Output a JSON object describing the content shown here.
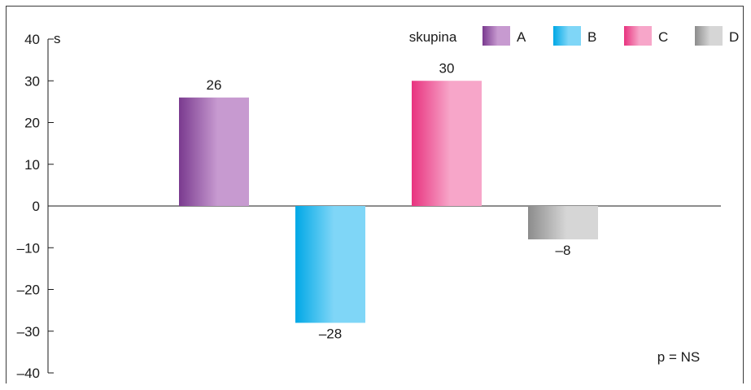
{
  "chart_data": {
    "type": "bar",
    "categories": [
      "A",
      "B",
      "C",
      "D"
    ],
    "values": [
      26,
      -28,
      30,
      -8
    ],
    "data_labels": [
      "26",
      "–28",
      "30",
      "–8"
    ],
    "ylabel": "s",
    "ylim": [
      -40,
      40
    ],
    "yticks": [
      40,
      30,
      20,
      10,
      0,
      -10,
      -20,
      -30,
      -40
    ],
    "ytick_labels": [
      "40",
      "30",
      "20",
      "10",
      "0",
      "–10",
      "–20",
      "–30",
      "–40"
    ],
    "grid": false,
    "legend": {
      "title": "skupina",
      "placement": "top-right",
      "entries": [
        "A",
        "B",
        "C",
        "D"
      ]
    },
    "annotation": "p = NS",
    "colors": {
      "A": [
        "#7a3a8f",
        "#c79ad0"
      ],
      "B": [
        "#00a8e6",
        "#7fd6f7"
      ],
      "C": [
        "#e8337f",
        "#f7a6c9"
      ],
      "D": [
        "#8c8c8c",
        "#d6d6d6"
      ]
    }
  }
}
